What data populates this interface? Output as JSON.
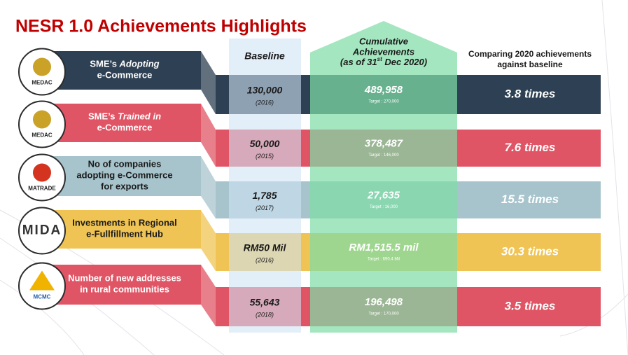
{
  "header": {
    "title": "NESR 1.0 Achievements Highlights"
  },
  "columns": {
    "baseline": "Baseline",
    "cumulative": {
      "lines": [
        "Cumulative",
        "Achievements"
      ],
      "date_prefix": "(as of 31",
      "date_sup": "st",
      "date_suffix": " Dec 2020)"
    },
    "comparison": [
      "Comparing 2020 achievements",
      "against baseline"
    ]
  },
  "rows": [
    {
      "logo": "MEDAC",
      "color": "#2e4053",
      "text_color": "#ffffff",
      "label_lines": [
        [
          {
            "text": "SME’s "
          },
          {
            "text": "Adopting",
            "italic": true
          }
        ],
        [
          {
            "text": "e-Commerce"
          }
        ]
      ],
      "baseline": "130,000",
      "baseline_year": "(2016)",
      "achievement": "489,958",
      "target": "Target : 270,000",
      "comparison": "3.8 times"
    },
    {
      "logo": "MEDAC",
      "color": "#e05565",
      "text_color": "#ffffff",
      "label_lines": [
        [
          {
            "text": "SME’s "
          },
          {
            "text": "Trained in",
            "italic": true
          }
        ],
        [
          {
            "text": "e-Commerce"
          }
        ]
      ],
      "baseline": "50,000",
      "baseline_year": "(2015)",
      "achievement": "378,487",
      "target": "Target : 146,000",
      "comparison": "7.6 times"
    },
    {
      "logo": "MATRADE",
      "color": "#a7c4cc",
      "text_color": "#1a1a1a",
      "label_lines": [
        [
          {
            "text": "No of companies"
          }
        ],
        [
          {
            "text": "adopting e-Commerce"
          }
        ],
        [
          {
            "text": "for exports"
          }
        ]
      ],
      "baseline": "1,785",
      "baseline_year": "(2017)",
      "achievement": "27,635",
      "target": "Target : 16,000",
      "comparison": "15.5 times"
    },
    {
      "logo": "MIDA",
      "color": "#f0c454",
      "text_color": "#1a1a1a",
      "label_lines": [
        [
          {
            "text": "Investments in Regional"
          }
        ],
        [
          {
            "text": "e-Fullfillment Hub"
          }
        ]
      ],
      "baseline": "RM50 Mil",
      "baseline_year": "(2016)",
      "achievement": "RM1,515.5 mil",
      "target": "Target : 690.4 Mil",
      "comparison": "30.3 times"
    },
    {
      "logo": "MCMC",
      "color": "#e05565",
      "text_color": "#ffffff",
      "label_lines": [
        [
          {
            "text": "Number of new addresses"
          }
        ],
        [
          {
            "text": "in rural communities"
          }
        ]
      ],
      "baseline": "55,643",
      "baseline_year": "(2018)",
      "achievement": "196,498",
      "target": "Target : 170,000",
      "comparison": "3.5 times"
    }
  ]
}
